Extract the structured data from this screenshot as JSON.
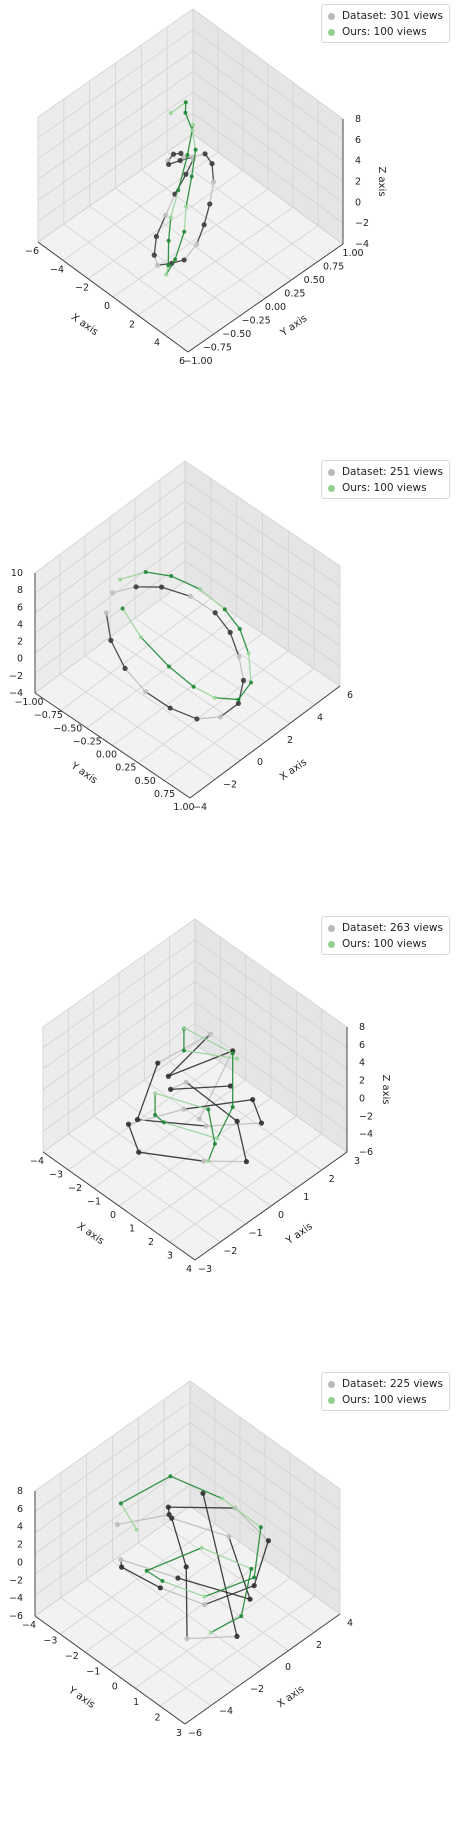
{
  "chart_data": [
    {
      "type": "scatter-3d-trajectory",
      "view": "az45-1",
      "xlabel": "X axis",
      "ylabel": "Y axis",
      "zlabel": "Z axis",
      "xlim": [
        -6,
        6
      ],
      "ylim": [
        -1.0,
        1.0
      ],
      "zlim": [
        -4,
        8
      ],
      "xticks": [
        "−6",
        "−4",
        "−2",
        "0",
        "2",
        "4",
        "6"
      ],
      "yticks": [
        "−1.00",
        "−0.75",
        "−0.50",
        "−0.25",
        "0.00",
        "0.25",
        "0.50",
        "0.75",
        "1.00"
      ],
      "zticks": [
        "−4",
        "−2",
        "0",
        "2",
        "4",
        "6",
        "8"
      ],
      "legend": [
        {
          "label": "Dataset: 301 views",
          "color": "#b0b0b0"
        },
        {
          "label": "Ours: 100 views",
          "color": "#86cf86"
        }
      ],
      "series": [
        {
          "name": "Dataset: 301 views",
          "color_dark": "#3c3c3c",
          "color_light": "#c0c0c0",
          "points": [
            [
              -4.5,
              0.6,
              -1
            ],
            [
              -4.2,
              0.5,
              0
            ],
            [
              -3.8,
              0.3,
              1
            ],
            [
              -3.2,
              0.1,
              1.5
            ],
            [
              -2.5,
              0.0,
              2
            ],
            [
              -1.8,
              0.1,
              2.5
            ],
            [
              -1.0,
              0.2,
              3
            ],
            [
              -0.2,
              0.3,
              3.5
            ],
            [
              0.6,
              0.3,
              3
            ],
            [
              1.4,
              0.2,
              2
            ],
            [
              2.2,
              0.0,
              1
            ],
            [
              2.8,
              -0.2,
              0
            ],
            [
              3.2,
              -0.4,
              -1
            ],
            [
              3.0,
              -0.6,
              -2
            ],
            [
              2.2,
              -0.7,
              -2.5
            ],
            [
              1.2,
              -0.8,
              -3
            ],
            [
              0.2,
              -0.7,
              -3
            ],
            [
              -0.8,
              -0.5,
              -2.5
            ],
            [
              -1.6,
              -0.2,
              -2
            ],
            [
              -2.4,
              0.1,
              -1.5
            ],
            [
              -3.0,
              0.4,
              -1
            ],
            [
              -3.4,
              0.6,
              -0.5
            ]
          ]
        },
        {
          "name": "Ours: 100 views",
          "color_dark": "#1f8a36",
          "color_light": "#9ad59a",
          "points": [
            [
              -3.5,
              0.2,
              6
            ],
            [
              -2.4,
              0.3,
              7.5
            ],
            [
              -1.2,
              0.1,
              8
            ],
            [
              0.2,
              0.0,
              7.5
            ],
            [
              1.2,
              -0.1,
              6.5
            ],
            [
              2.0,
              -0.3,
              5
            ],
            [
              2.6,
              -0.5,
              3
            ],
            [
              3.0,
              -0.6,
              1
            ],
            [
              3.2,
              -0.8,
              -1
            ],
            [
              2.8,
              -0.9,
              -2.5
            ],
            [
              1.8,
              -0.7,
              -3
            ],
            [
              0.6,
              -0.5,
              -2
            ],
            [
              -0.4,
              -0.3,
              -1
            ],
            [
              -1.4,
              0.0,
              0
            ],
            [
              -2.2,
              0.3,
              2
            ],
            [
              -2.8,
              0.5,
              4
            ]
          ]
        }
      ]
    },
    {
      "type": "scatter-3d-trajectory",
      "view": "az45-2",
      "xlabel": "X axis",
      "ylabel": "Y axis",
      "zlabel": "",
      "xlim": [
        -4,
        6
      ],
      "ylim": [
        -1.0,
        1.0
      ],
      "zlim": [
        -4,
        10
      ],
      "xticks": [
        "−4",
        "−2",
        "0",
        "2",
        "4",
        "6"
      ],
      "yticks": [
        "−1.00",
        "−0.75",
        "−0.50",
        "−0.25",
        "0.00",
        "0.25",
        "0.50",
        "0.75",
        "1.00"
      ],
      "zticks": [
        "−4",
        "−2",
        "0",
        "2",
        "4",
        "6",
        "8",
        "10"
      ],
      "legend": [
        {
          "label": "Dataset: 251 views",
          "color": "#b0b0b0"
        },
        {
          "label": "Ours: 100 views",
          "color": "#86cf86"
        }
      ],
      "series": [
        {
          "name": "Dataset: 251 views",
          "color_dark": "#3c3c3c",
          "color_light": "#c0c0c0",
          "points": [
            [
              -2.0,
              -0.8,
              7
            ],
            [
              -0.8,
              -0.6,
              7.5
            ],
            [
              0.6,
              -0.4,
              7
            ],
            [
              1.8,
              -0.1,
              6
            ],
            [
              2.6,
              0.2,
              4.5
            ],
            [
              3.0,
              0.4,
              2.5
            ],
            [
              2.8,
              0.6,
              0.5
            ],
            [
              2.2,
              0.8,
              -1
            ],
            [
              1.2,
              0.9,
              -2.5
            ],
            [
              0.0,
              0.8,
              -3.5
            ],
            [
              -1.2,
              0.6,
              -3.5
            ],
            [
              -2.2,
              0.3,
              -2.5
            ],
            [
              -3.0,
              0.0,
              -1
            ],
            [
              -3.4,
              -0.3,
              1
            ],
            [
              -3.2,
              -0.6,
              3
            ],
            [
              -2.6,
              -0.8,
              5
            ]
          ]
        },
        {
          "name": "Ours: 100 views",
          "color_dark": "#1f8a36",
          "color_light": "#9ad59a",
          "points": [
            [
              -1.8,
              -0.7,
              9
            ],
            [
              -0.4,
              -0.5,
              9.5
            ],
            [
              1.0,
              -0.3,
              8.5
            ],
            [
              2.2,
              0.0,
              7
            ],
            [
              3.0,
              0.3,
              5
            ],
            [
              3.4,
              0.5,
              3
            ],
            [
              3.2,
              0.7,
              1
            ],
            [
              2.4,
              0.9,
              -1
            ],
            [
              1.2,
              0.9,
              -2
            ],
            [
              0.0,
              0.7,
              -1.5
            ],
            [
              -1.0,
              0.5,
              0
            ],
            [
              -1.8,
              0.2,
              2
            ],
            [
              -2.4,
              -0.2,
              4.5
            ],
            [
              -2.6,
              -0.5,
              7
            ]
          ]
        }
      ]
    },
    {
      "type": "scatter-3d-trajectory",
      "view": "az135-1",
      "xlabel": "X axis",
      "ylabel": "Y axis",
      "zlabel": "Z axis",
      "xlim": [
        -4,
        4
      ],
      "ylim": [
        -3,
        3
      ],
      "zlim": [
        -6,
        8
      ],
      "xticks": [
        "−4",
        "−3",
        "−2",
        "−1",
        "0",
        "1",
        "2",
        "3",
        "4"
      ],
      "yticks": [
        "−3",
        "−2",
        "−1",
        "0",
        "1",
        "2",
        "3"
      ],
      "zticks": [
        "−6",
        "−4",
        "−2",
        "0",
        "2",
        "4",
        "6",
        "8"
      ],
      "legend": [
        {
          "label": "Dataset: 263 views",
          "color": "#b0b0b0"
        },
        {
          "label": "Ours: 100 views",
          "color": "#86cf86"
        }
      ],
      "series": [
        {
          "name": "Dataset: 263 views",
          "color_dark": "#2e2e2e",
          "color_light": "#c0c0c0",
          "points": [
            [
              3.0,
              -2.0,
              4
            ],
            [
              1.5,
              1.0,
              6
            ],
            [
              0.0,
              -1.5,
              5
            ],
            [
              -1.5,
              2.0,
              3
            ],
            [
              -2.8,
              0.0,
              1
            ],
            [
              -1.0,
              -2.5,
              0
            ],
            [
              1.5,
              -0.5,
              -1
            ],
            [
              3.0,
              1.5,
              -2
            ],
            [
              1.0,
              2.5,
              -3
            ],
            [
              -1.5,
              0.5,
              -4
            ],
            [
              -3.0,
              -1.5,
              -4.5
            ],
            [
              -0.5,
              -2.8,
              -3
            ],
            [
              2.0,
              -1.0,
              -4
            ],
            [
              3.2,
              0.5,
              -5
            ],
            [
              0.5,
              2.0,
              -5.5
            ],
            [
              -2.0,
              1.0,
              -2
            ],
            [
              -0.5,
              -1.0,
              2
            ],
            [
              2.0,
              0.5,
              3
            ]
          ]
        },
        {
          "name": "Ours: 100 views",
          "color_dark": "#1f8a36",
          "color_light": "#9ad59a",
          "points": [
            [
              2.5,
              0.5,
              7
            ],
            [
              0.5,
              -1.0,
              8
            ],
            [
              -1.5,
              0.5,
              6
            ],
            [
              -2.8,
              1.5,
              3
            ],
            [
              -0.5,
              2.5,
              1
            ],
            [
              1.5,
              1.0,
              -1
            ],
            [
              3.0,
              -1.0,
              0
            ],
            [
              1.0,
              -2.5,
              2
            ],
            [
              -1.0,
              -1.5,
              -1
            ],
            [
              -3.0,
              0.0,
              -3
            ],
            [
              -1.0,
              1.5,
              -5
            ],
            [
              1.5,
              0.0,
              -4
            ],
            [
              3.0,
              -1.5,
              -2
            ]
          ]
        }
      ]
    },
    {
      "type": "scatter-3d-trajectory",
      "view": "az45-3",
      "xlabel": "X axis",
      "ylabel": "Y axis",
      "zlabel": "",
      "xlim": [
        -6,
        4
      ],
      "ylim": [
        -4,
        3
      ],
      "zlim": [
        -6,
        8
      ],
      "xticks": [
        "−6",
        "−4",
        "−2",
        "0",
        "2",
        "4"
      ],
      "yticks": [
        "−4",
        "−3",
        "−2",
        "−1",
        "0",
        "1",
        "2",
        "3"
      ],
      "zticks": [
        "−6",
        "−4",
        "−2",
        "0",
        "2",
        "4",
        "6",
        "8"
      ],
      "legend": [
        {
          "label": "Dataset: 225 views",
          "color": "#b0b0b0"
        },
        {
          "label": "Ours: 100 views",
          "color": "#86cf86"
        }
      ],
      "series": [
        {
          "name": "Dataset: 225 views",
          "color_dark": "#2e2e2e",
          "color_light": "#bdbdbd",
          "points": [
            [
              -4.0,
              -3.0,
              4
            ],
            [
              -2.0,
              -1.0,
              6
            ],
            [
              0.0,
              -2.5,
              3
            ],
            [
              2.0,
              0.5,
              5
            ],
            [
              3.0,
              2.0,
              2
            ],
            [
              1.0,
              2.5,
              -1
            ],
            [
              -1.5,
              1.0,
              -3
            ],
            [
              -3.5,
              -0.5,
              -1
            ],
            [
              -5.0,
              -2.0,
              1
            ],
            [
              -3.0,
              -3.5,
              -2
            ],
            [
              -0.5,
              -1.5,
              -4
            ],
            [
              2.0,
              1.5,
              -5
            ],
            [
              3.5,
              -1.0,
              -2
            ],
            [
              1.0,
              -3.0,
              0
            ],
            [
              -2.5,
              0.5,
              2
            ],
            [
              -4.5,
              2.0,
              -3
            ],
            [
              -1.0,
              2.8,
              -5
            ],
            [
              2.5,
              -2.0,
              3
            ]
          ]
        },
        {
          "name": "Ours: 100 views",
          "color_dark": "#1f8a36",
          "color_light": "#9ad59a",
          "points": [
            [
              -5.0,
              -1.0,
              7
            ],
            [
              -3.0,
              -3.5,
              5
            ],
            [
              -0.5,
              -2.0,
              8
            ],
            [
              1.5,
              0.0,
              6
            ],
            [
              3.0,
              1.5,
              3
            ],
            [
              1.0,
              2.5,
              0
            ],
            [
              -1.5,
              1.0,
              -2
            ],
            [
              -4.0,
              0.0,
              1
            ],
            [
              -2.0,
              -2.5,
              -3
            ],
            [
              1.0,
              -1.0,
              -1
            ],
            [
              3.5,
              0.5,
              -4
            ],
            [
              0.5,
              2.0,
              -5
            ],
            [
              -3.0,
              2.5,
              -3
            ]
          ]
        }
      ]
    }
  ]
}
